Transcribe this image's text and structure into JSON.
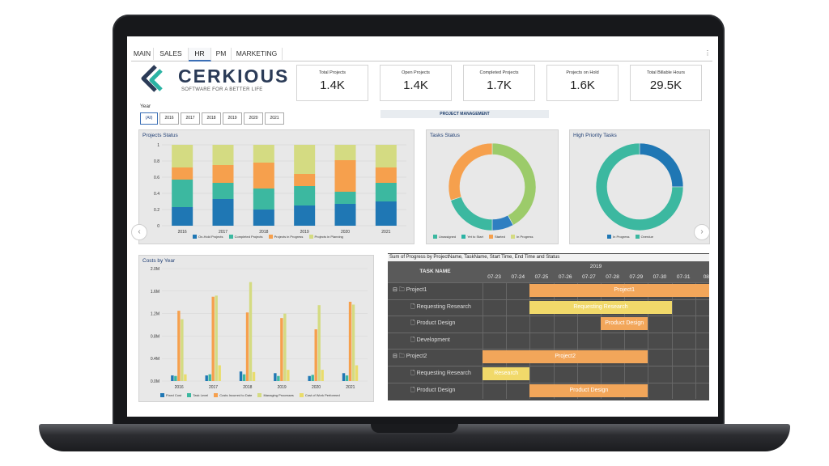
{
  "tabs": [
    {
      "label": "MAIN"
    },
    {
      "label": "SALES"
    },
    {
      "label": "HR"
    },
    {
      "label": "PM"
    },
    {
      "label": "MARKETING"
    }
  ],
  "menu_glyph": "⋮",
  "logo": {
    "word": "CERKIOUS",
    "tagline": "SOFTWARE FOR A BETTER LIFE"
  },
  "kpis": [
    {
      "title": "Total Projects",
      "value": "1.4K"
    },
    {
      "title": "Open Projects",
      "value": "1.4K"
    },
    {
      "title": "Completed Projects",
      "value": "1.7K"
    },
    {
      "title": "Projects on Hold",
      "value": "1.6K"
    },
    {
      "title": "Total Billable Hours",
      "value": "29.5K"
    }
  ],
  "year_filter": {
    "label": "Year",
    "options": [
      "(All)",
      "2016",
      "2017",
      "2018",
      "2019",
      "2020",
      "2021"
    ],
    "selected": "(All)"
  },
  "banner": "PROJECT MANAGEMENT",
  "colors": {
    "onhold": "#1f77b4",
    "completed": "#3cb8a0",
    "inprogress": "#f6a04d",
    "planning": "#d4db82",
    "yellow": "#f1d96a",
    "orange": "#f2a65a"
  },
  "chart_data": [
    {
      "type": "bar",
      "title": "Projects Status",
      "stacked": true,
      "categories": [
        "2016",
        "2017",
        "2018",
        "2019",
        "2020",
        "2021"
      ],
      "ylim": [
        0,
        1
      ],
      "yticks": [
        "0",
        "0.2",
        "0.4",
        "0.6",
        "0.8",
        "1"
      ],
      "series": [
        {
          "name": "On-Hold Projects",
          "values": [
            0.23,
            0.33,
            0.2,
            0.25,
            0.27,
            0.3
          ]
        },
        {
          "name": "Completed Projects",
          "values": [
            0.34,
            0.2,
            0.26,
            0.24,
            0.15,
            0.23
          ]
        },
        {
          "name": "Projects in Progress",
          "values": [
            0.15,
            0.22,
            0.32,
            0.15,
            0.39,
            0.19
          ]
        },
        {
          "name": "Projects in Planning",
          "values": [
            0.28,
            0.25,
            0.22,
            0.36,
            0.19,
            0.28
          ]
        }
      ]
    },
    {
      "type": "pie",
      "title": "Tasks Status",
      "donut": true,
      "series": [
        {
          "name": "Unassigned",
          "values": [
            0.42
          ]
        },
        {
          "name": "Yet to Start",
          "values": [
            0.08
          ]
        },
        {
          "name": "Started",
          "values": [
            0.2
          ]
        },
        {
          "name": "In Progress",
          "values": [
            0.3
          ]
        }
      ]
    },
    {
      "type": "pie",
      "title": "High Priority Tasks",
      "donut": true,
      "series": [
        {
          "name": "In Progress",
          "values": [
            0.25
          ]
        },
        {
          "name": "Overdue",
          "values": [
            0.75
          ]
        }
      ]
    },
    {
      "type": "bar",
      "title": "Costs by Year",
      "categories": [
        "2016",
        "2017",
        "2018",
        "2019",
        "2020",
        "2021"
      ],
      "ylim": [
        0,
        2.0
      ],
      "yticks": [
        "0.0M",
        "0.4M",
        "0.8M",
        "1.2M",
        "1.6M",
        "2.0M"
      ],
      "series": [
        {
          "name": "Fixed Cost",
          "values": [
            0.1,
            0.1,
            0.17,
            0.14,
            0.09,
            0.14
          ]
        },
        {
          "name": "Task Level",
          "values": [
            0.09,
            0.12,
            0.12,
            0.09,
            0.11,
            0.1
          ]
        },
        {
          "name": "Costs Incurred to Date",
          "values": [
            1.25,
            1.5,
            1.22,
            1.12,
            0.92,
            1.41
          ]
        },
        {
          "name": "Managing Processes",
          "values": [
            1.1,
            1.52,
            1.76,
            1.2,
            1.35,
            1.36
          ]
        },
        {
          "name": "Cost of Work Performed",
          "values": [
            0.12,
            0.28,
            0.16,
            0.2,
            0.2,
            0.28
          ]
        }
      ]
    }
  ],
  "gantt": {
    "caption": "Sum of Progress by ProjectName, TaskName, Start Time, End Time and Status",
    "task_header": "TASK NAME",
    "year": "2019",
    "dates": [
      "07-23",
      "07-24",
      "07-25",
      "07-26",
      "07-27",
      "07-28",
      "07-29",
      "07-30",
      "07-31",
      "08-"
    ],
    "rows": [
      {
        "label": "Project1",
        "level": 0,
        "bar_label": "Project1",
        "start": 2,
        "end": 10,
        "color": "orange"
      },
      {
        "label": "Requesting Research",
        "level": 1,
        "bar_label": "Requesting Research",
        "start": 2,
        "end": 8,
        "color": "yellow"
      },
      {
        "label": "Product Design",
        "level": 1,
        "bar_label": "Product Design",
        "start": 5,
        "end": 7,
        "color": "orange"
      },
      {
        "label": "Development",
        "level": 1,
        "bar_label": "",
        "start": 0,
        "end": 0,
        "color": "orange"
      },
      {
        "label": "Project2",
        "level": 0,
        "bar_label": "Project2",
        "start": 0,
        "end": 7,
        "color": "orange"
      },
      {
        "label": "Requesting Research",
        "level": 1,
        "bar_label": "Research",
        "start": 0,
        "end": 2,
        "color": "yellow"
      },
      {
        "label": "Product Design",
        "level": 1,
        "bar_label": "Product Design",
        "start": 2,
        "end": 7,
        "color": "orange"
      }
    ]
  }
}
